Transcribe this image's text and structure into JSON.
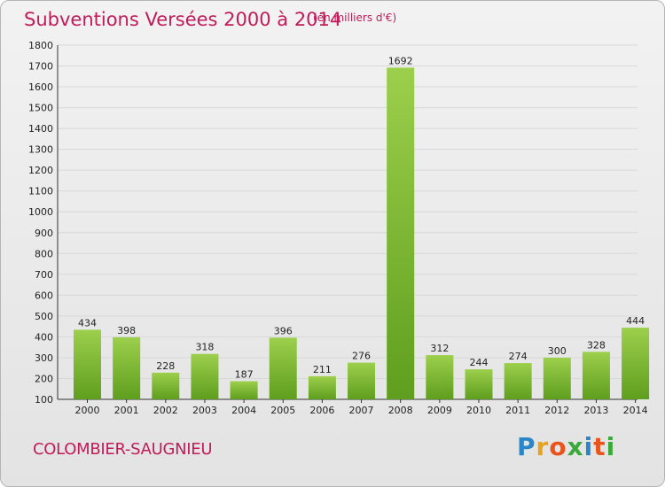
{
  "title": "Subventions Versées 2000 à 2014",
  "unit": "(en milliers d'€)",
  "commune": "COLOMBIER-SAUGNIEU",
  "logo": {
    "text": "Proxiti",
    "colors": [
      "#2a86c8",
      "#e8a21c",
      "#e8541c",
      "#3aa83a",
      "#2a86c8",
      "#e8541c",
      "#3aa83a"
    ]
  },
  "colors": {
    "title": "#c01c5a",
    "bar_light": "#9ccf4c",
    "bar_dark": "#5f9e1e",
    "grid": "#d8d8d8"
  },
  "chart_data": {
    "type": "bar",
    "categories": [
      "2000",
      "2001",
      "2002",
      "2003",
      "2004",
      "2005",
      "2006",
      "2007",
      "2008",
      "2009",
      "2010",
      "2011",
      "2012",
      "2013",
      "2014"
    ],
    "values": [
      434,
      398,
      228,
      318,
      187,
      396,
      211,
      276,
      1692,
      312,
      244,
      274,
      300,
      328,
      444
    ],
    "ylim": [
      100,
      1800
    ],
    "yticks": [
      100,
      200,
      300,
      400,
      500,
      600,
      700,
      800,
      900,
      1000,
      1100,
      1200,
      1300,
      1400,
      1500,
      1600,
      1700,
      1800
    ],
    "grid": true
  }
}
